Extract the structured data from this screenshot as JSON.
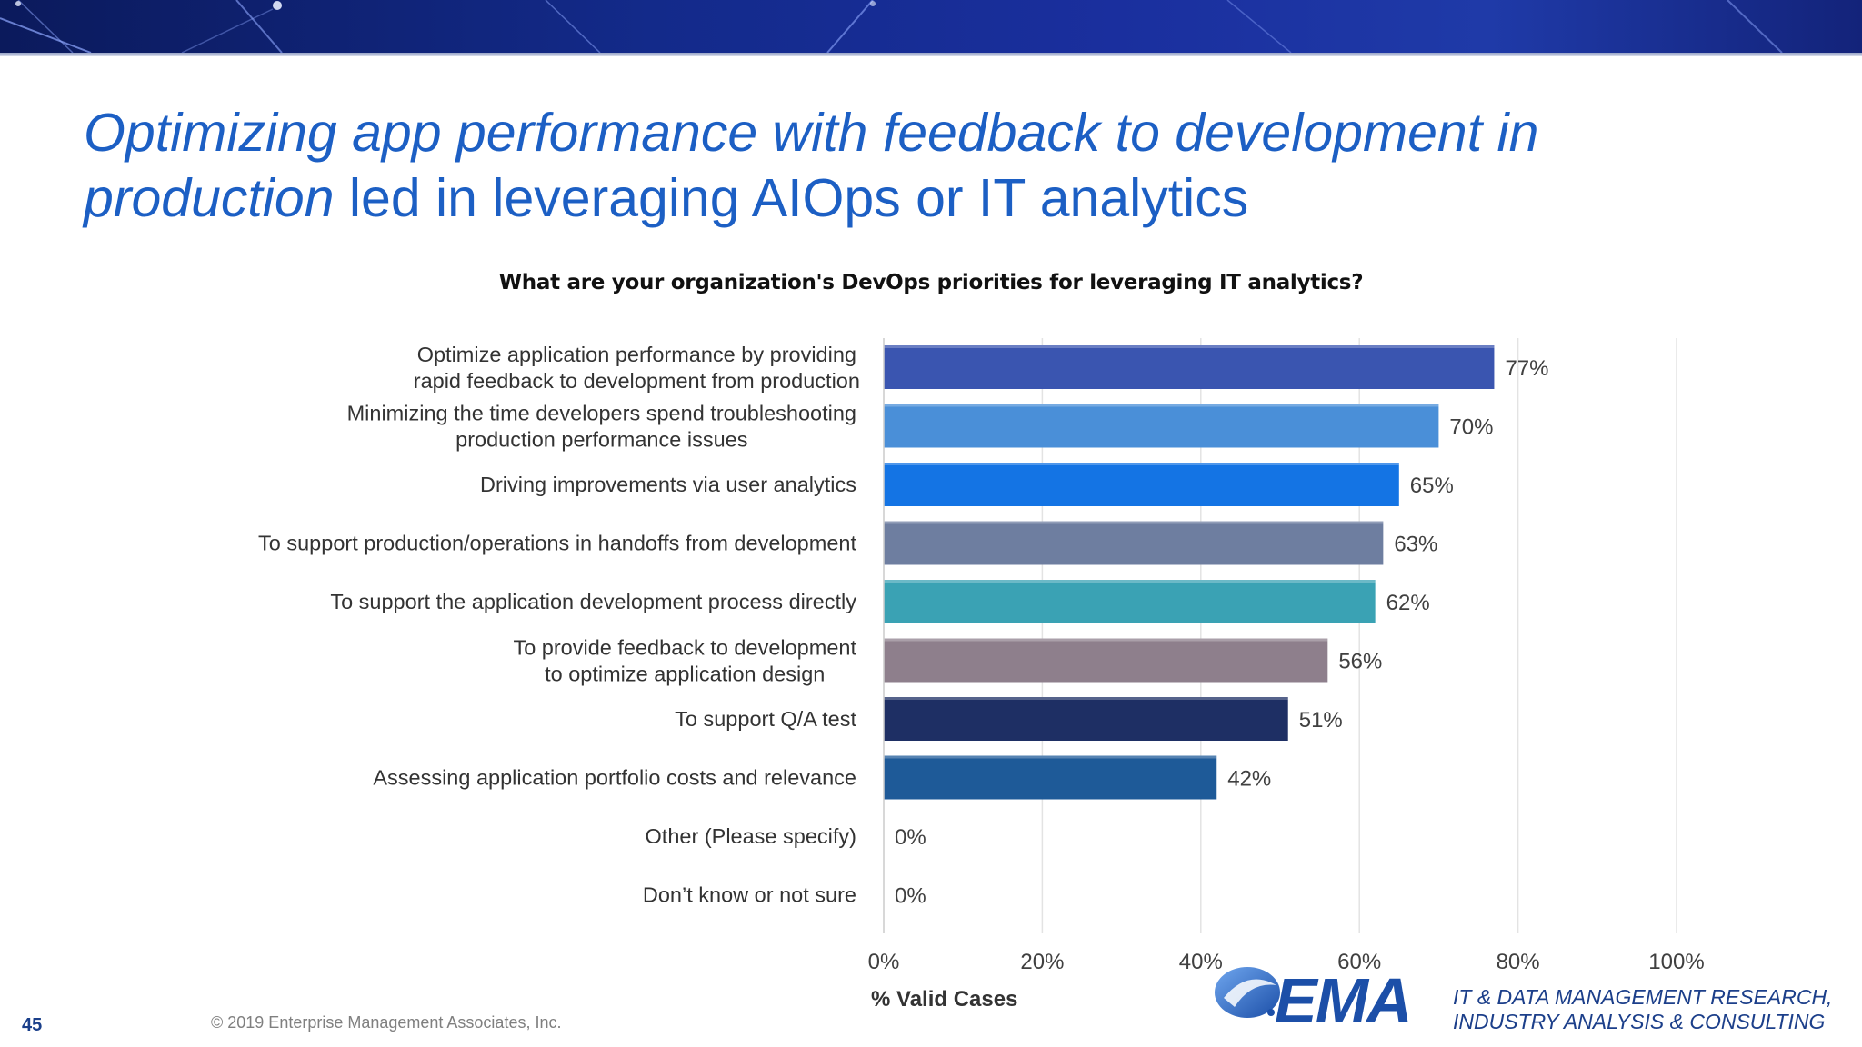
{
  "slide": {
    "title_italic": "Optimizing app performance with feedback to development in production",
    "title_rest": " led in leveraging AIOps or IT analytics",
    "page_number": "45",
    "copyright": "© 2019 Enterprise Management Associates, Inc.",
    "logo_text": "EMA",
    "tagline_line1": "IT & DATA MANAGEMENT RESEARCH,",
    "tagline_line2": "INDUSTRY ANALYSIS & CONSULTING",
    "colors": {
      "title": "#1c5fc4",
      "banner": "#13237a",
      "logo": "#1c4fa8"
    }
  },
  "chart_data": {
    "type": "bar",
    "orientation": "horizontal",
    "title": "What are your organization's DevOps priorities for leveraging IT analytics?",
    "xlabel": "% Valid Cases",
    "ylabel": "",
    "xlim": [
      0,
      100
    ],
    "x_ticks": [
      "0%",
      "20%",
      "40%",
      "60%",
      "80%",
      "100%"
    ],
    "grid": true,
    "categories": [
      "Optimize application performance by providing rapid feedback to development from production",
      "Minimizing the time developers spend troubleshooting production performance issues",
      "Driving improvements via user analytics",
      "To support production/operations in handoffs from development",
      "To support the application development process directly",
      "To provide feedback to development to optimize application design",
      "To support Q/A test",
      "Assessing application portfolio costs and relevance",
      "Other (Please specify)",
      "Don’t know or not sure"
    ],
    "values": [
      77,
      70,
      65,
      63,
      62,
      56,
      51,
      42,
      0,
      0
    ],
    "value_labels": [
      "77%",
      "70%",
      "65%",
      "63%",
      "62%",
      "56%",
      "51%",
      "42%",
      "0%",
      "0%"
    ],
    "bar_colors": [
      "#3a55b0",
      "#4a8fd8",
      "#1474e4",
      "#6e7ea0",
      "#3aa2b4",
      "#8e7f8c",
      "#1e2f64",
      "#1e5a98",
      "#1e5a98",
      "#1e5a98"
    ]
  }
}
